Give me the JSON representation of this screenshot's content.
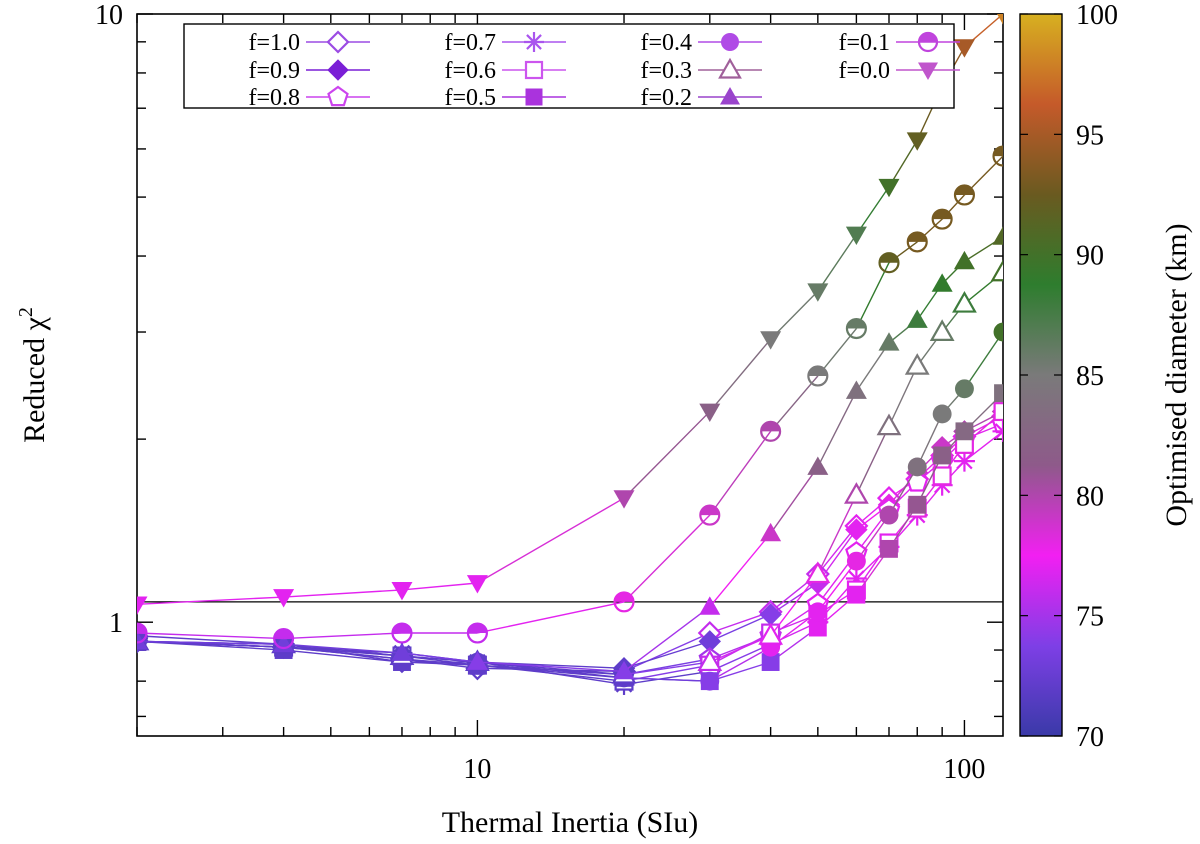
{
  "chart_data": {
    "type": "scatter",
    "title": "",
    "xlabel": "Thermal Inertia (SIu)",
    "ylabel": "Reduced χ",
    "ylabel_sup": "2",
    "x_scale": "log",
    "y_scale": "log",
    "xlim": [
      2,
      120
    ],
    "ylim": [
      0.65,
      10
    ],
    "x_tick_labels": [
      {
        "value": 10,
        "label": "10"
      },
      {
        "value": 100,
        "label": "100"
      }
    ],
    "y_tick_labels": [
      {
        "value": 1,
        "label": "1"
      },
      {
        "value": 10,
        "label": "10"
      }
    ],
    "grid": false,
    "reference_line_y": 1.08,
    "legend_position": "top-left",
    "colorbar": {
      "label": "Optimised diameter (km)",
      "min": 70,
      "max": 100,
      "ticks": [
        "70",
        "75",
        "80",
        "85",
        "90",
        "95",
        "100"
      ],
      "stops": [
        "#3a3aa8",
        "#7e3fe6",
        "#f21ff2",
        "#8e5a8a",
        "#7a7a7a",
        "#2e7d2e",
        "#6a5a20",
        "#c55a2a",
        "#d7b020"
      ]
    },
    "x": [
      2,
      4,
      7,
      10,
      20,
      30,
      40,
      50,
      60,
      70,
      80,
      90,
      100,
      120
    ],
    "series": [
      {
        "name": "f=1.0",
        "marker": "diamond-open",
        "line_color": "#9b4be3",
        "values": [
          0.93,
          0.91,
          0.87,
          0.84,
          0.83,
          0.96,
          1.04,
          1.2,
          1.44,
          1.6,
          1.72,
          1.88,
          2.02,
          2.18
        ],
        "diameters": [
          72,
          72,
          72,
          72,
          72,
          76,
          76,
          76,
          77,
          77,
          78,
          78,
          78,
          78
        ]
      },
      {
        "name": "f=0.9",
        "marker": "diamond-filled",
        "line_color": "#7a1fd6",
        "values": [
          0.95,
          0.92,
          0.86,
          0.86,
          0.84,
          0.93,
          1.03,
          1.16,
          1.42,
          1.56,
          1.76,
          1.94,
          2.06,
          2.22
        ],
        "diameters": [
          72,
          72,
          72,
          72,
          72,
          73,
          74,
          76,
          77,
          78,
          79,
          79,
          80,
          80
        ]
      },
      {
        "name": "f=0.8",
        "marker": "pentagon-open",
        "line_color": "#cc44ee",
        "values": [
          0.93,
          0.91,
          0.87,
          0.85,
          0.82,
          0.87,
          0.95,
          1.07,
          1.3,
          1.53,
          1.7,
          1.84,
          2.0,
          2.12
        ],
        "diameters": [
          72,
          72,
          72,
          72,
          72,
          75,
          76,
          77,
          77,
          77,
          77,
          77,
          77,
          77
        ]
      },
      {
        "name": "f=0.7",
        "marker": "star",
        "line_color": "#aa55ee",
        "values": [
          0.93,
          0.91,
          0.89,
          0.86,
          0.79,
          0.83,
          0.92,
          1.0,
          1.18,
          1.33,
          1.5,
          1.68,
          1.84,
          2.06
        ],
        "diameters": [
          72,
          72,
          72,
          72,
          72,
          72,
          76,
          77,
          77,
          77,
          77,
          77,
          77,
          77
        ]
      },
      {
        "name": "f=0.6",
        "marker": "square-open",
        "line_color": "#cc55ee",
        "values": [
          0.93,
          0.91,
          0.88,
          0.85,
          0.8,
          0.85,
          0.96,
          1.03,
          1.13,
          1.35,
          1.54,
          1.74,
          1.96,
          2.22
        ],
        "diameters": [
          72,
          72,
          72,
          72,
          72,
          76,
          76,
          77,
          77,
          77,
          78,
          78,
          78,
          78
        ]
      },
      {
        "name": "f=0.5",
        "marker": "square-filled",
        "line_color": "#aa33dd",
        "values": [
          0.93,
          0.9,
          0.86,
          0.85,
          0.81,
          0.8,
          0.86,
          0.98,
          1.11,
          1.32,
          1.56,
          1.88,
          2.06,
          2.38
        ],
        "diameters": [
          72,
          72,
          72,
          72,
          72,
          74,
          74,
          77,
          77,
          80,
          81,
          82,
          83,
          84
        ]
      },
      {
        "name": "f=0.4",
        "marker": "circle-filled",
        "line_color": "#b04be6",
        "values": [
          0.93,
          0.92,
          0.88,
          0.86,
          0.81,
          0.8,
          0.91,
          1.04,
          1.26,
          1.5,
          1.8,
          2.2,
          2.42,
          3.0
        ],
        "diameters": [
          72,
          72,
          72,
          72,
          72,
          74,
          77,
          77,
          78,
          80,
          84,
          85,
          86,
          90
        ]
      },
      {
        "name": "f=0.3",
        "marker": "triangle-open",
        "line_color": "#a0609a",
        "values": [
          0.93,
          0.92,
          0.88,
          0.86,
          0.82,
          0.86,
          0.95,
          1.2,
          1.62,
          2.1,
          2.64,
          3.0,
          3.34,
          3.76
        ],
        "diameters": [
          72,
          72,
          72,
          72,
          72,
          76,
          77,
          78,
          80,
          84,
          85,
          86,
          88,
          90
        ]
      },
      {
        "name": "f=0.2",
        "marker": "triangle-filled",
        "line_color": "#9a44cc",
        "values": [
          0.93,
          0.92,
          0.89,
          0.86,
          0.83,
          1.06,
          1.4,
          1.8,
          2.4,
          2.88,
          3.14,
          3.6,
          3.92,
          4.3
        ],
        "diameters": [
          73,
          73,
          73,
          74,
          74,
          76,
          79,
          82,
          84,
          86,
          88,
          89,
          90,
          91
        ]
      },
      {
        "name": "f=0.1",
        "marker": "circle-half",
        "line_color": "#c044dd",
        "values": [
          0.96,
          0.94,
          0.96,
          0.96,
          1.08,
          1.5,
          2.06,
          2.54,
          3.04,
          3.9,
          4.22,
          4.6,
          5.04,
          5.84
        ],
        "diameters": [
          76,
          76,
          76,
          76,
          78,
          79,
          80,
          85,
          86,
          92,
          93,
          93,
          93,
          93
        ]
      },
      {
        "name": "f=0.0",
        "marker": "triangle-down-filled",
        "line_color": "#c055cc",
        "values": [
          1.07,
          1.1,
          1.13,
          1.16,
          1.6,
          2.22,
          2.92,
          3.5,
          4.34,
          5.2,
          6.2,
          7.6,
          8.82,
          10.0
        ],
        "diameters": [
          77,
          77,
          77,
          77,
          80,
          82,
          85,
          86,
          87,
          90,
          92,
          93,
          95,
          98
        ]
      }
    ]
  }
}
